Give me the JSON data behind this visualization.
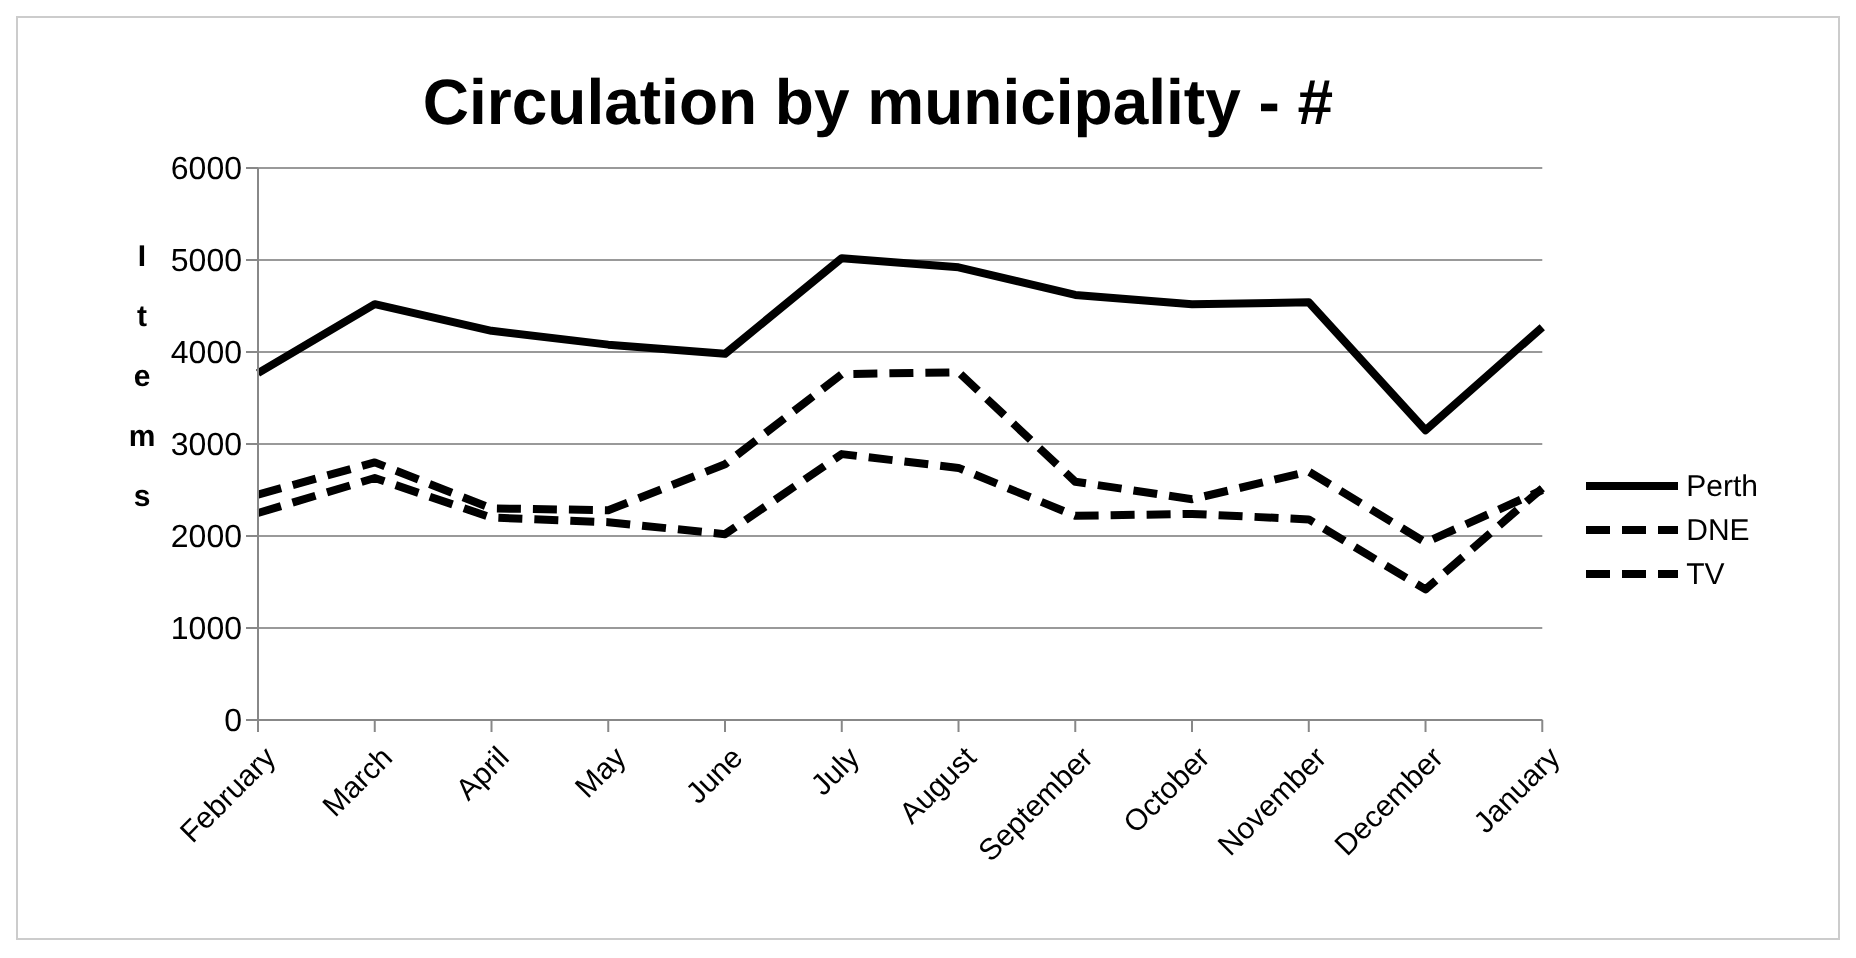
{
  "chart_data": {
    "type": "line",
    "title": "Circulation by municipality - #",
    "ylabel": "Items",
    "categories": [
      "February",
      "March",
      "April",
      "May",
      "June",
      "July",
      "August",
      "September",
      "October",
      "November",
      "December",
      "January"
    ],
    "series": [
      {
        "name": "Perth",
        "color": "#000000",
        "line_style": "solid",
        "values": [
          3770,
          4520,
          4230,
          4080,
          3980,
          5020,
          4920,
          4620,
          4520,
          4540,
          3150,
          4270
        ]
      },
      {
        "name": "DNE",
        "color": "#000000",
        "line_style": "dashed",
        "values": [
          2450,
          2800,
          2300,
          2280,
          2780,
          3760,
          3780,
          2590,
          2400,
          2700,
          1930,
          2500
        ]
      },
      {
        "name": "TV",
        "color": "#000000",
        "line_style": "dashed",
        "values": [
          2250,
          2630,
          2200,
          2150,
          2020,
          2890,
          2740,
          2220,
          2240,
          2180,
          1420,
          2520
        ]
      }
    ],
    "ylim": [
      0,
      6000
    ],
    "yticks": [
      0,
      1000,
      2000,
      3000,
      4000,
      5000,
      6000
    ],
    "grid": "y",
    "legend": "right",
    "marker": "none"
  }
}
